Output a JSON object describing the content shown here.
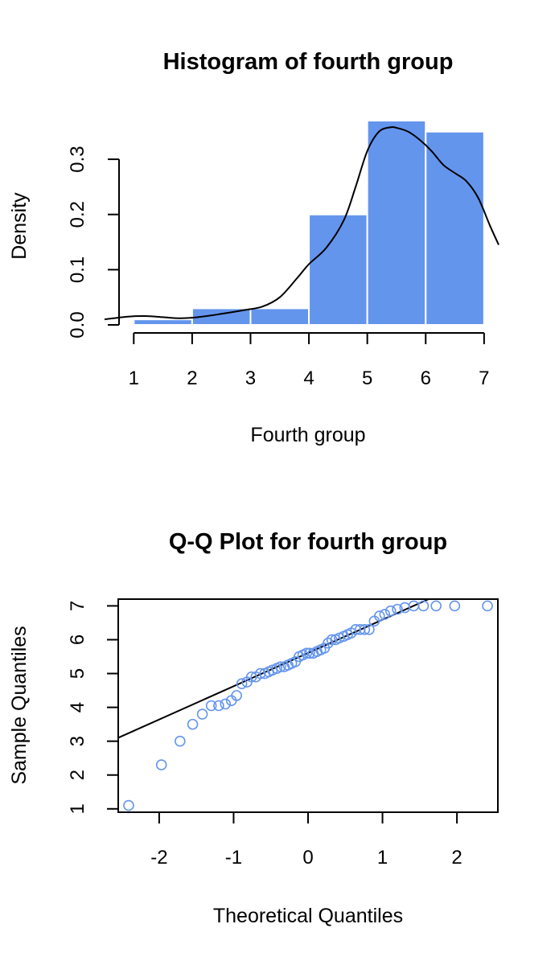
{
  "chart_data": [
    {
      "type": "bar",
      "title": "Histogram of fourth group",
      "xlabel": "Fourth group",
      "ylabel": "Density",
      "bar_color": "#6495ED",
      "bins": [
        {
          "x0": 1,
          "x1": 2,
          "density": 0.01
        },
        {
          "x0": 2,
          "x1": 3,
          "density": 0.03
        },
        {
          "x0": 3,
          "x1": 4,
          "density": 0.03
        },
        {
          "x0": 4,
          "x1": 5,
          "density": 0.2
        },
        {
          "x0": 5,
          "x1": 6,
          "density": 0.37
        },
        {
          "x0": 6,
          "x1": 7,
          "density": 0.35
        }
      ],
      "x_ticks": [
        1,
        2,
        3,
        4,
        5,
        6,
        7
      ],
      "y_ticks": [
        0.0,
        0.1,
        0.2,
        0.3
      ],
      "y_tick_labels": [
        "0.0",
        "0.1",
        "0.2",
        "0.3"
      ],
      "xlim": [
        0.5,
        7.25
      ],
      "ylim": [
        0,
        0.37
      ],
      "density_curve": {
        "x": [
          0.5,
          0.9,
          1.2,
          1.5,
          1.8,
          2.1,
          2.5,
          2.9,
          3.2,
          3.5,
          3.8,
          4.0,
          4.3,
          4.6,
          4.8,
          5.0,
          5.2,
          5.4,
          5.5,
          5.7,
          5.9,
          6.1,
          6.3,
          6.5,
          6.7,
          6.9,
          7.1,
          7.25
        ],
        "y": [
          0.01,
          0.015,
          0.016,
          0.014,
          0.012,
          0.014,
          0.02,
          0.027,
          0.033,
          0.05,
          0.085,
          0.11,
          0.14,
          0.19,
          0.25,
          0.315,
          0.35,
          0.358,
          0.357,
          0.35,
          0.335,
          0.315,
          0.29,
          0.275,
          0.26,
          0.23,
          0.18,
          0.145
        ]
      }
    },
    {
      "type": "scatter",
      "title": "Q-Q Plot for fourth group",
      "xlabel": "Theoretical Quantiles",
      "ylabel": "Sample Quantiles",
      "point_color": "#6495ED",
      "x_ticks": [
        -2,
        -1,
        0,
        1,
        2
      ],
      "x_tick_labels": [
        "-2",
        "-1",
        "0",
        "1",
        "2"
      ],
      "y_ticks": [
        1,
        2,
        3,
        4,
        5,
        6,
        7
      ],
      "xlim": [
        -2.55,
        2.55
      ],
      "ylim": [
        0.9,
        7.2
      ],
      "reference_line": {
        "x1": -2.55,
        "y1": 3.1,
        "x2": 1.62,
        "y2": 7.2
      },
      "points": {
        "x": [
          -2.41,
          -1.97,
          -1.72,
          -1.55,
          -1.42,
          -1.3,
          -1.2,
          -1.11,
          -1.03,
          -0.96,
          -0.89,
          -0.82,
          -0.76,
          -0.7,
          -0.64,
          -0.58,
          -0.53,
          -0.48,
          -0.42,
          -0.37,
          -0.32,
          -0.27,
          -0.22,
          -0.17,
          -0.12,
          -0.07,
          -0.02,
          0.02,
          0.07,
          0.12,
          0.17,
          0.22,
          0.27,
          0.32,
          0.37,
          0.42,
          0.48,
          0.53,
          0.58,
          0.64,
          0.7,
          0.76,
          0.82,
          0.89,
          0.96,
          1.03,
          1.11,
          1.2,
          1.3,
          1.42,
          1.55,
          1.72,
          1.97,
          2.41
        ],
        "y": [
          1.1,
          2.3,
          3.0,
          3.5,
          3.8,
          4.05,
          4.05,
          4.1,
          4.2,
          4.35,
          4.7,
          4.75,
          4.9,
          4.9,
          5.0,
          5.0,
          5.05,
          5.1,
          5.15,
          5.2,
          5.2,
          5.25,
          5.3,
          5.35,
          5.5,
          5.55,
          5.6,
          5.6,
          5.6,
          5.65,
          5.7,
          5.75,
          5.9,
          6.0,
          6.0,
          6.05,
          6.1,
          6.15,
          6.2,
          6.3,
          6.3,
          6.3,
          6.3,
          6.55,
          6.7,
          6.75,
          6.85,
          6.9,
          6.95,
          7.0,
          7.0,
          7.0,
          7.0,
          7.0
        ]
      }
    }
  ]
}
